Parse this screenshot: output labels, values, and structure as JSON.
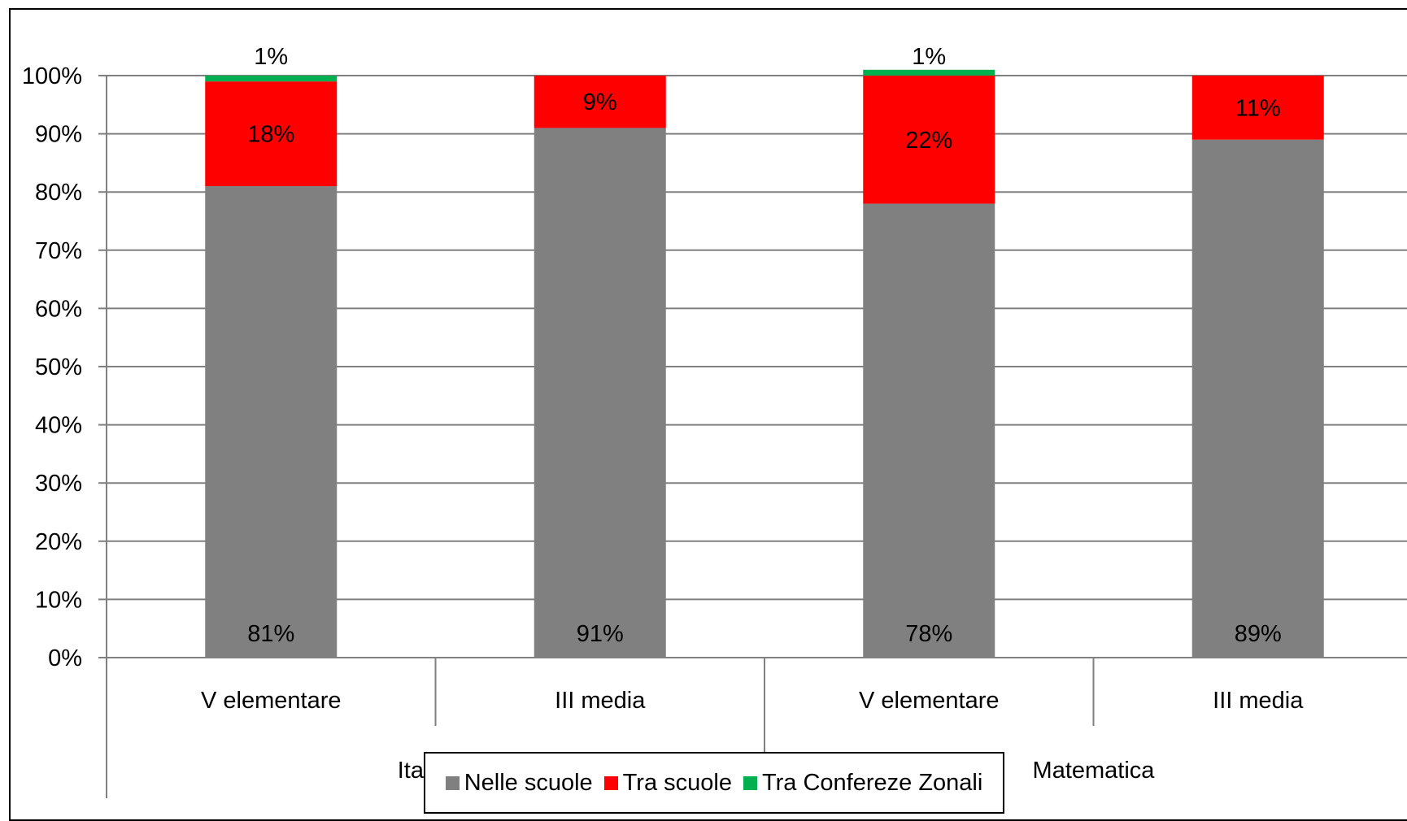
{
  "chart_data": {
    "type": "bar",
    "stacked": true,
    "y_axis": {
      "min": 0,
      "max": 100,
      "tick_labels": [
        "0%",
        "10%",
        "20%",
        "30%",
        "40%",
        "50%",
        "60%",
        "70%",
        "80%",
        "90%",
        "100%"
      ]
    },
    "grid": true,
    "groups": [
      "Italiano",
      "Matematica"
    ],
    "categories": [
      "V elementare",
      "III media",
      "V elementare",
      "III media"
    ],
    "series": [
      {
        "name": "Nelle scuole",
        "color": "#808080",
        "values": [
          81,
          91,
          78,
          89
        ],
        "labels": [
          "81%",
          "91%",
          "78%",
          "89%"
        ]
      },
      {
        "name": "Tra scuole",
        "color": "#ff0000",
        "values": [
          18,
          9,
          22,
          11
        ],
        "labels": [
          "18%",
          "9%",
          "22%",
          "11%"
        ]
      },
      {
        "name": "Tra Confereze Zonali",
        "color": "#00b050",
        "values": [
          1,
          0,
          1,
          0
        ],
        "labels": [
          "1%",
          "",
          "1%",
          ""
        ]
      }
    ],
    "legend_position": "bottom"
  }
}
